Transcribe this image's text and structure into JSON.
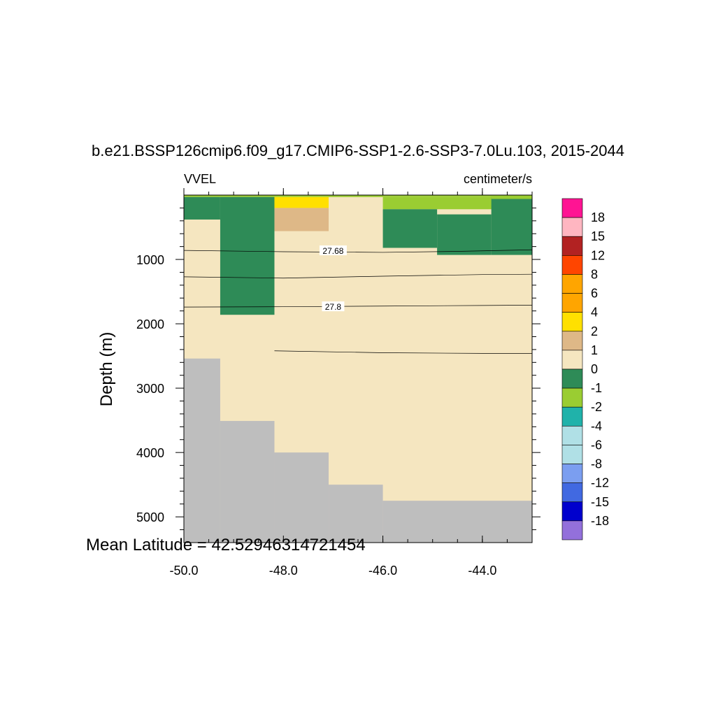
{
  "chart_data": {
    "type": "heatmap",
    "title": "b.e21.BSSP126cmip6.f09_g17.CMIP6-SSP1-2.6-SSP3-7.0Lu.103, 2015-2044",
    "variable": "VVEL",
    "units": "centimeter/s",
    "xlabel": "",
    "ylabel": "Depth (m)",
    "footer": "Mean Latitude = 42.52946314721454",
    "xlim": [
      -50.0,
      -43.0
    ],
    "ylim": [
      0,
      5400
    ],
    "x_ticks": [
      {
        "value": -50.0,
        "label": "-50.0"
      },
      {
        "value": -48.0,
        "label": "-48.0"
      },
      {
        "value": -46.0,
        "label": "-46.0"
      },
      {
        "value": -44.0,
        "label": "-44.0"
      }
    ],
    "y_ticks": [
      {
        "value": 1000,
        "label": "1000"
      },
      {
        "value": 2000,
        "label": "2000"
      },
      {
        "value": 3000,
        "label": "3000"
      },
      {
        "value": 4000,
        "label": "4000"
      },
      {
        "value": 5000,
        "label": "5000"
      }
    ],
    "colorbar": {
      "labels": [
        "18",
        "15",
        "12",
        "8",
        "6",
        "4",
        "2",
        "1",
        "0",
        "-1",
        "-2",
        "-4",
        "-6",
        "-8",
        "-12",
        "-15",
        "-18"
      ],
      "colors": [
        "#ff1493",
        "#ffb6c1",
        "#b22222",
        "#ff4500",
        "#ffa500",
        "#ffa500",
        "#ffe000",
        "#deb887",
        "#f5e6c0",
        "#2e8b57",
        "#9acd32",
        "#20b2aa",
        "#b0e0e6",
        "#b0e0e6",
        "#7b9ef0",
        "#4169e1",
        "#0000cd",
        "#9370db"
      ]
    },
    "land_color": "#bebebe",
    "cells": [
      {
        "x": [
          -50.0,
          -43.0
        ],
        "y": [
          0,
          5400
        ],
        "color": "#f5e6c0",
        "value_range": "0 to 1"
      },
      {
        "x": [
          -50.0,
          -43.0
        ],
        "y": [
          0,
          30
        ],
        "color": "#9acd32",
        "value_range": "-2 to -1"
      },
      {
        "x": [
          -50.0,
          -49.27
        ],
        "y": [
          30,
          380
        ],
        "color": "#2e8b57",
        "value_range": "-1 to 0"
      },
      {
        "x": [
          -49.27,
          -48.18
        ],
        "y": [
          30,
          1860
        ],
        "color": "#2e8b57",
        "value_range": "-1 to 0"
      },
      {
        "x": [
          -48.18,
          -47.09
        ],
        "y": [
          30,
          200
        ],
        "color": "#ffe000",
        "value_range": "2 to 4"
      },
      {
        "x": [
          -48.18,
          -47.09
        ],
        "y": [
          200,
          560
        ],
        "color": "#deb887",
        "value_range": "1 to 2"
      },
      {
        "x": [
          -46.0,
          -43.0
        ],
        "y": [
          30,
          220
        ],
        "color": "#9acd32",
        "value_range": "-2 to -1"
      },
      {
        "x": [
          -46.0,
          -44.91
        ],
        "y": [
          220,
          820
        ],
        "color": "#2e8b57",
        "value_range": "-1 to 0"
      },
      {
        "x": [
          -44.91,
          -43.82
        ],
        "y": [
          300,
          930
        ],
        "color": "#2e8b57",
        "value_range": "-1 to 0"
      },
      {
        "x": [
          -43.82,
          -43.0
        ],
        "y": [
          30,
          930
        ],
        "color": "#2e8b57",
        "value_range": "-1 to 0"
      },
      {
        "x": [
          -43.82,
          -43.0
        ],
        "y": [
          0,
          60
        ],
        "color": "#9acd32",
        "value_range": "-2 to -1"
      }
    ],
    "land": [
      {
        "x": [
          -50.0,
          -49.27
        ],
        "y": [
          2540,
          5400
        ]
      },
      {
        "x": [
          -49.27,
          -48.18
        ],
        "y": [
          3510,
          5400
        ]
      },
      {
        "x": [
          -48.18,
          -47.09
        ],
        "y": [
          4000,
          5400
        ]
      },
      {
        "x": [
          -47.09,
          -46.0
        ],
        "y": [
          4500,
          5400
        ]
      },
      {
        "x": [
          -46.0,
          -43.0
        ],
        "y": [
          4750,
          5400
        ]
      }
    ],
    "contours": [
      {
        "label": "27.68",
        "label_at": [
          -47.0,
          870
        ],
        "points": [
          [
            -50.0,
            860
          ],
          [
            -48.0,
            880
          ],
          [
            -46.0,
            890
          ],
          [
            -44.5,
            875
          ],
          [
            -43.0,
            850
          ]
        ]
      },
      {
        "label": "",
        "points": [
          [
            -50.0,
            1270
          ],
          [
            -48.0,
            1290
          ],
          [
            -46.0,
            1260
          ],
          [
            -44.0,
            1235
          ],
          [
            -43.0,
            1230
          ]
        ]
      },
      {
        "label": "27.8",
        "label_at": [
          -47.0,
          1740
        ],
        "points": [
          [
            -50.0,
            1740
          ],
          [
            -48.0,
            1735
          ],
          [
            -46.0,
            1725
          ],
          [
            -44.0,
            1715
          ],
          [
            -43.0,
            1710
          ]
        ]
      },
      {
        "label": "",
        "points": [
          [
            -48.18,
            2420
          ],
          [
            -46.0,
            2450
          ],
          [
            -44.0,
            2460
          ],
          [
            -43.0,
            2460
          ]
        ]
      }
    ]
  }
}
